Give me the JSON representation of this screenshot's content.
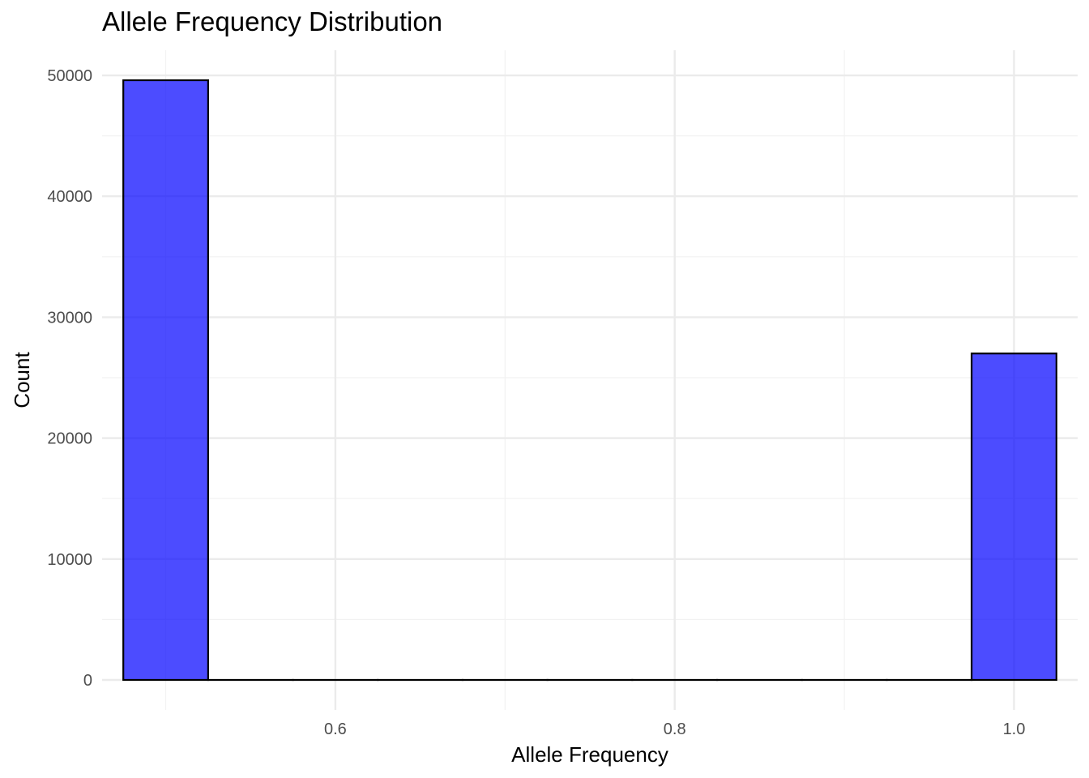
{
  "chart_data": {
    "type": "bar",
    "title": "Allele Frequency Distribution",
    "xlabel": "Allele Frequency",
    "ylabel": "Count",
    "bin_width": 0.05,
    "bins": [
      {
        "center": 0.5,
        "count": 49600
      },
      {
        "center": 0.55,
        "count": 0
      },
      {
        "center": 0.6,
        "count": 0
      },
      {
        "center": 0.65,
        "count": 0
      },
      {
        "center": 0.7,
        "count": 0
      },
      {
        "center": 0.75,
        "count": 0
      },
      {
        "center": 0.8,
        "count": 0
      },
      {
        "center": 0.85,
        "count": 0
      },
      {
        "center": 0.9,
        "count": 0
      },
      {
        "center": 0.95,
        "count": 0
      },
      {
        "center": 1.0,
        "count": 27000
      }
    ],
    "xlim": [
      0.4625,
      1.0375
    ],
    "ylim": [
      -2480,
      52080
    ],
    "x_ticks": [
      0.6,
      0.8,
      1.0
    ],
    "x_tick_labels": [
      "0.6",
      "0.8",
      "1.0"
    ],
    "x_minor_ticks": [
      0.5,
      0.7,
      0.9
    ],
    "y_ticks": [
      0,
      10000,
      20000,
      30000,
      40000,
      50000
    ],
    "y_tick_labels": [
      "0",
      "10000",
      "20000",
      "30000",
      "40000",
      "50000"
    ],
    "y_minor_ticks": [
      5000,
      15000,
      25000,
      35000,
      45000
    ],
    "grid": true,
    "legend": "none",
    "colors": {
      "bar_fill": "#0000ff",
      "bar_fill_opacity": 0.7,
      "bar_outline": "#000000",
      "grid_major": "#ebebeb",
      "grid_minor": "#f2f2f2",
      "tick_text": "#4d4d4d"
    }
  }
}
